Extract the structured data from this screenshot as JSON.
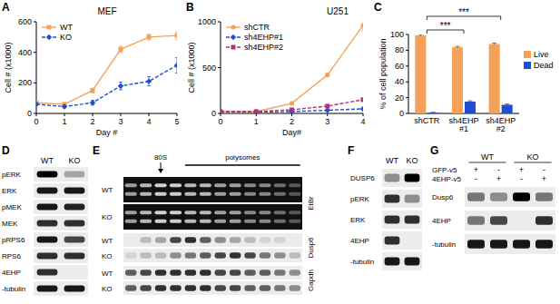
{
  "chart_data": [
    {
      "label": "A",
      "type": "line",
      "title": "MEF",
      "x_label": "Day #",
      "y_label": "Cell # (x1000)",
      "x": [
        0,
        1,
        2,
        3,
        4,
        5
      ],
      "xlim": [
        0,
        5
      ],
      "xticks": [
        0,
        1,
        2,
        3,
        4,
        5
      ],
      "ylim": [
        0,
        600
      ],
      "yticks": [
        0,
        200,
        400,
        600
      ],
      "legend": "upper left",
      "series": [
        {
          "name": "WT",
          "color": "#f4a259",
          "marker": "square",
          "line_style": "solid",
          "values": [
            70,
            60,
            150,
            420,
            500,
            510
          ],
          "errors": [
            10,
            10,
            15,
            20,
            20,
            25
          ]
        },
        {
          "name": "KO",
          "color": "#1f4fd0",
          "marker": "diamond",
          "line_style": "dashed",
          "values": [
            60,
            45,
            70,
            180,
            210,
            315
          ],
          "errors": [
            10,
            8,
            15,
            25,
            30,
            50
          ]
        }
      ]
    },
    {
      "label": "B",
      "type": "line",
      "title": "U251",
      "x_label": "Day#",
      "y_label": "Cell # (x1000)",
      "x": [
        0,
        1,
        2,
        3,
        4
      ],
      "xlim": [
        0,
        4
      ],
      "xticks": [
        0,
        1,
        2,
        3,
        4
      ],
      "ylim": [
        0,
        1000
      ],
      "yticks": [
        0,
        500,
        1000
      ],
      "legend": "upper left",
      "series": [
        {
          "name": "shCTR",
          "color": "#f4a259",
          "marker": "circle",
          "line_style": "solid",
          "values": [
            25,
            20,
            110,
            420,
            960
          ],
          "errors": [
            5,
            5,
            10,
            20,
            60
          ]
        },
        {
          "name": "sh4EHP#1",
          "color": "#1f4fd0",
          "marker": "diamond",
          "line_style": "dashed",
          "values": [
            20,
            15,
            20,
            35,
            50
          ],
          "errors": [
            3,
            3,
            3,
            5,
            8
          ]
        },
        {
          "name": "sh4EHP#2",
          "color": "#b0307a",
          "marker": "square",
          "line_style": "dashed",
          "values": [
            20,
            20,
            40,
            80,
            150
          ],
          "errors": [
            3,
            3,
            5,
            8,
            10
          ]
        }
      ]
    },
    {
      "label": "C",
      "type": "bar",
      "y_label": "% of cell population",
      "categories": [
        "shCTR",
        "sh4EHP #1",
        "sh4EHP #2"
      ],
      "ylim": [
        0,
        100
      ],
      "yticks": [
        0,
        20,
        40,
        60,
        80,
        100
      ],
      "legend": "right",
      "series": [
        {
          "name": "Live",
          "color": "#f4a259",
          "values": [
            99,
            84,
            88
          ],
          "errors": [
            1,
            1,
            1
          ]
        },
        {
          "name": "Dead",
          "color": "#1f4fd0",
          "values": [
            1,
            15,
            11
          ],
          "errors": [
            0.5,
            1,
            1
          ]
        }
      ],
      "annotations": [
        {
          "text": "***",
          "categories": [
            0,
            1
          ]
        },
        {
          "text": "***",
          "categories": [
            0,
            2
          ]
        }
      ]
    }
  ],
  "blots": [
    {
      "label": "D",
      "columns": [
        "WT",
        "KO"
      ],
      "rows": [
        {
          "name": "pERK",
          "bands": [
            1,
            0.3
          ]
        },
        {
          "name": "ERK",
          "bands": [
            0.9,
            0.9
          ]
        },
        {
          "name": "pMEK",
          "bands": [
            0.9,
            0.85
          ]
        },
        {
          "name": "MEK",
          "bands": [
            0.8,
            0.8
          ]
        },
        {
          "name": "pRPS6",
          "bands": [
            0.9,
            0.7
          ]
        },
        {
          "name": "RPS6",
          "bands": [
            0.8,
            0.8
          ]
        },
        {
          "name": "4EHP",
          "bands": [
            0.8,
            0
          ]
        },
        {
          "name": "-tubulin",
          "bands": [
            0.9,
            0.9
          ]
        }
      ]
    },
    {
      "label": "E",
      "markers": [
        {
          "text": "80S",
          "lanes": [
            2,
            2
          ]
        },
        {
          "text": "polysomes",
          "lanes": [
            4,
            11
          ]
        }
      ],
      "groups": [
        {
          "stain": "EtBr",
          "inverted": true,
          "rows": [
            {
              "name": "WT",
              "bands": [
                0.6,
                0.7,
                0.8,
                0.8,
                0.7,
                0.7,
                0.6,
                0.6,
                0.5,
                0.5,
                0.4,
                0.3
              ]
            },
            {
              "name": "KO",
              "bands": [
                0.6,
                0.7,
                0.8,
                0.8,
                0.7,
                0.7,
                0.6,
                0.6,
                0.5,
                0.5,
                0.4,
                0.3
              ]
            }
          ]
        },
        {
          "stain": "Dusp6",
          "inverted": false,
          "rows": [
            {
              "name": "WT",
              "bands": [
                0,
                0.2,
                0.3,
                0.7,
                0.8,
                0.6,
                0.4,
                0.3,
                0.2,
                0.1,
                0.1,
                0
              ]
            },
            {
              "name": "KO",
              "bands": [
                0.1,
                0.2,
                0.2,
                0.4,
                0.5,
                0.6,
                0.7,
                0.8,
                0.7,
                0.5,
                0.4,
                0.2
              ]
            }
          ]
        },
        {
          "stain": "Gapdh",
          "inverted": false,
          "rows": [
            {
              "name": "WT",
              "bands": [
                0.6,
                0.7,
                0.8,
                0.8,
                0.8,
                0.8,
                0.7,
                0.7,
                0.6,
                0.6,
                0.5,
                0.4
              ]
            },
            {
              "name": "KO",
              "bands": [
                0.6,
                0.7,
                0.8,
                0.8,
                0.8,
                0.8,
                0.7,
                0.7,
                0.6,
                0.6,
                0.5,
                0.4
              ]
            }
          ]
        }
      ]
    },
    {
      "label": "F",
      "columns": [
        "WT",
        "KO"
      ],
      "rows": [
        {
          "name": "DUSP6",
          "bands": [
            0.4,
            1
          ]
        },
        {
          "name": "pERK",
          "bands": [
            0.8,
            0.4
          ]
        },
        {
          "name": "ERK",
          "bands": [
            0.8,
            0.8
          ]
        },
        {
          "name": "4EHP",
          "bands": [
            0.8,
            0
          ]
        },
        {
          "name": "-tubulin",
          "bands": [
            0.9,
            0.9
          ]
        }
      ]
    },
    {
      "label": "G",
      "column_groups": [
        "WT",
        "KO"
      ],
      "header_rows": [
        {
          "name": "GFP-v5",
          "values": [
            "+",
            "-",
            "+",
            "-"
          ]
        },
        {
          "name": "4EHP-v5",
          "values": [
            "-",
            "+",
            "-",
            "+"
          ]
        }
      ],
      "rows": [
        {
          "name": "Dusp6",
          "bands": [
            0.5,
            0.4,
            1,
            0.5
          ]
        },
        {
          "name": "4EHP",
          "bands": [
            0.5,
            0.7,
            0,
            0.8
          ]
        },
        {
          "name": "-tubulin",
          "bands": [
            0.9,
            0.9,
            0.9,
            0.9
          ]
        }
      ]
    }
  ]
}
